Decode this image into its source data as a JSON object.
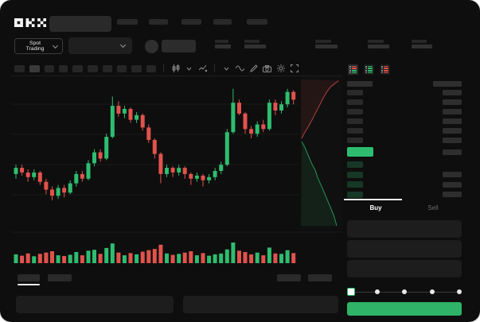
{
  "brand": {
    "name": "OKX"
  },
  "topnav": {
    "search_placeholder": "",
    "nav_item_count": 5
  },
  "ticker": {
    "market_selector_label": "Spot Trading",
    "stat_group_count": 5
  },
  "chart_toolbar": {
    "timeframe_button_count": 10,
    "active_timeframe_index": 1,
    "icons": [
      "candle-type",
      "chevron-down",
      "indicators",
      "chevron-down",
      "line-tools",
      "draw",
      "camera",
      "settings",
      "fullscreen"
    ]
  },
  "order_book": {
    "view_toggles": [
      "book-combined",
      "book-bids-only",
      "book-asks-only"
    ],
    "selected_toggle_index": 0,
    "ask_row_count": 6,
    "bid_row_count": 4,
    "bid_rows_with_amount": 3,
    "last_price_highlight": "green"
  },
  "trade_panel": {
    "tabs": [
      {
        "label": "Buy",
        "active": true
      },
      {
        "label": "Sell",
        "active": false
      }
    ],
    "field_count": 3,
    "slider": {
      "stops": 5,
      "active_index": 0
    }
  },
  "bottom_bar": {
    "left_tab_count": 2,
    "active_left_tab_index": 0,
    "right_tab_count": 2,
    "panel_count": 2
  },
  "colors": {
    "up": "#2EBD70",
    "down": "#E0534C",
    "buy_button": "#2EB368",
    "background": "#0E0E0E",
    "grid": "#1B1B1B"
  },
  "chart_data": {
    "type": "candlestick",
    "title": "",
    "xlabel": "",
    "ylabel": "",
    "price_scale": [
      0,
      100
    ],
    "grid": true,
    "candles_ohlc": [
      [
        38,
        44,
        35,
        42
      ],
      [
        42,
        44,
        37,
        39
      ],
      [
        39,
        41,
        33,
        36
      ],
      [
        36,
        41,
        34,
        39
      ],
      [
        39,
        40,
        31,
        33
      ],
      [
        33,
        35,
        25,
        28
      ],
      [
        28,
        30,
        21,
        24
      ],
      [
        24,
        31,
        22,
        29
      ],
      [
        29,
        31,
        23,
        26
      ],
      [
        26,
        34,
        25,
        32
      ],
      [
        32,
        40,
        30,
        38
      ],
      [
        38,
        40,
        33,
        35
      ],
      [
        35,
        47,
        34,
        45
      ],
      [
        45,
        54,
        43,
        52
      ],
      [
        52,
        54,
        46,
        48
      ],
      [
        48,
        64,
        47,
        62
      ],
      [
        62,
        88,
        61,
        82
      ],
      [
        82,
        85,
        75,
        77
      ],
      [
        77,
        82,
        74,
        80
      ],
      [
        80,
        81,
        71,
        73
      ],
      [
        73,
        78,
        71,
        76
      ],
      [
        76,
        77,
        66,
        68
      ],
      [
        68,
        70,
        58,
        60
      ],
      [
        60,
        61,
        48,
        51
      ],
      [
        51,
        52,
        32,
        38
      ],
      [
        38,
        44,
        36,
        42
      ],
      [
        42,
        43,
        36,
        39
      ],
      [
        39,
        44,
        37,
        42
      ],
      [
        42,
        43,
        35,
        38
      ],
      [
        38,
        39,
        31,
        35
      ],
      [
        35,
        39,
        33,
        37
      ],
      [
        37,
        38,
        30,
        34
      ],
      [
        34,
        38,
        32,
        36
      ],
      [
        36,
        42,
        34,
        40
      ],
      [
        40,
        46,
        38,
        44
      ],
      [
        44,
        67,
        43,
        65
      ],
      [
        65,
        93,
        64,
        84
      ],
      [
        84,
        86,
        76,
        77
      ],
      [
        77,
        78,
        64,
        67
      ],
      [
        67,
        69,
        61,
        64
      ],
      [
        64,
        72,
        62,
        70
      ],
      [
        70,
        73,
        65,
        67
      ],
      [
        67,
        86,
        66,
        84
      ],
      [
        84,
        86,
        76,
        79
      ],
      [
        79,
        85,
        77,
        83
      ],
      [
        83,
        93,
        81,
        91
      ],
      [
        91,
        92,
        83,
        86
      ]
    ],
    "volumes": [
      35,
      28,
      40,
      25,
      38,
      45,
      52,
      30,
      26,
      33,
      48,
      30,
      55,
      60,
      38,
      70,
      95,
      45,
      30,
      42,
      35,
      50,
      58,
      65,
      88,
      40,
      32,
      38,
      45,
      52,
      30,
      42,
      28,
      35,
      40,
      62,
      100,
      55,
      48,
      35,
      45,
      30,
      72,
      40,
      38,
      58,
      42
    ],
    "depth": {
      "asks": [
        [
          0.95,
          0.02
        ],
        [
          0.85,
          0.07
        ],
        [
          0.74,
          0.13
        ],
        [
          0.64,
          0.22
        ],
        [
          0.55,
          0.33
        ],
        [
          0.46,
          0.45
        ],
        [
          0.36,
          0.58
        ],
        [
          0.27,
          0.7
        ],
        [
          0.17,
          0.82
        ],
        [
          0.08,
          0.92
        ],
        [
          0.02,
          1.0
        ]
      ],
      "bids": [
        [
          0.02,
          0.0
        ],
        [
          0.1,
          0.07
        ],
        [
          0.18,
          0.16
        ],
        [
          0.27,
          0.26
        ],
        [
          0.36,
          0.34
        ],
        [
          0.43,
          0.44
        ],
        [
          0.52,
          0.53
        ],
        [
          0.6,
          0.62
        ],
        [
          0.68,
          0.71
        ],
        [
          0.76,
          0.8
        ],
        [
          0.83,
          0.88
        ],
        [
          0.9,
          1.0
        ]
      ]
    }
  }
}
